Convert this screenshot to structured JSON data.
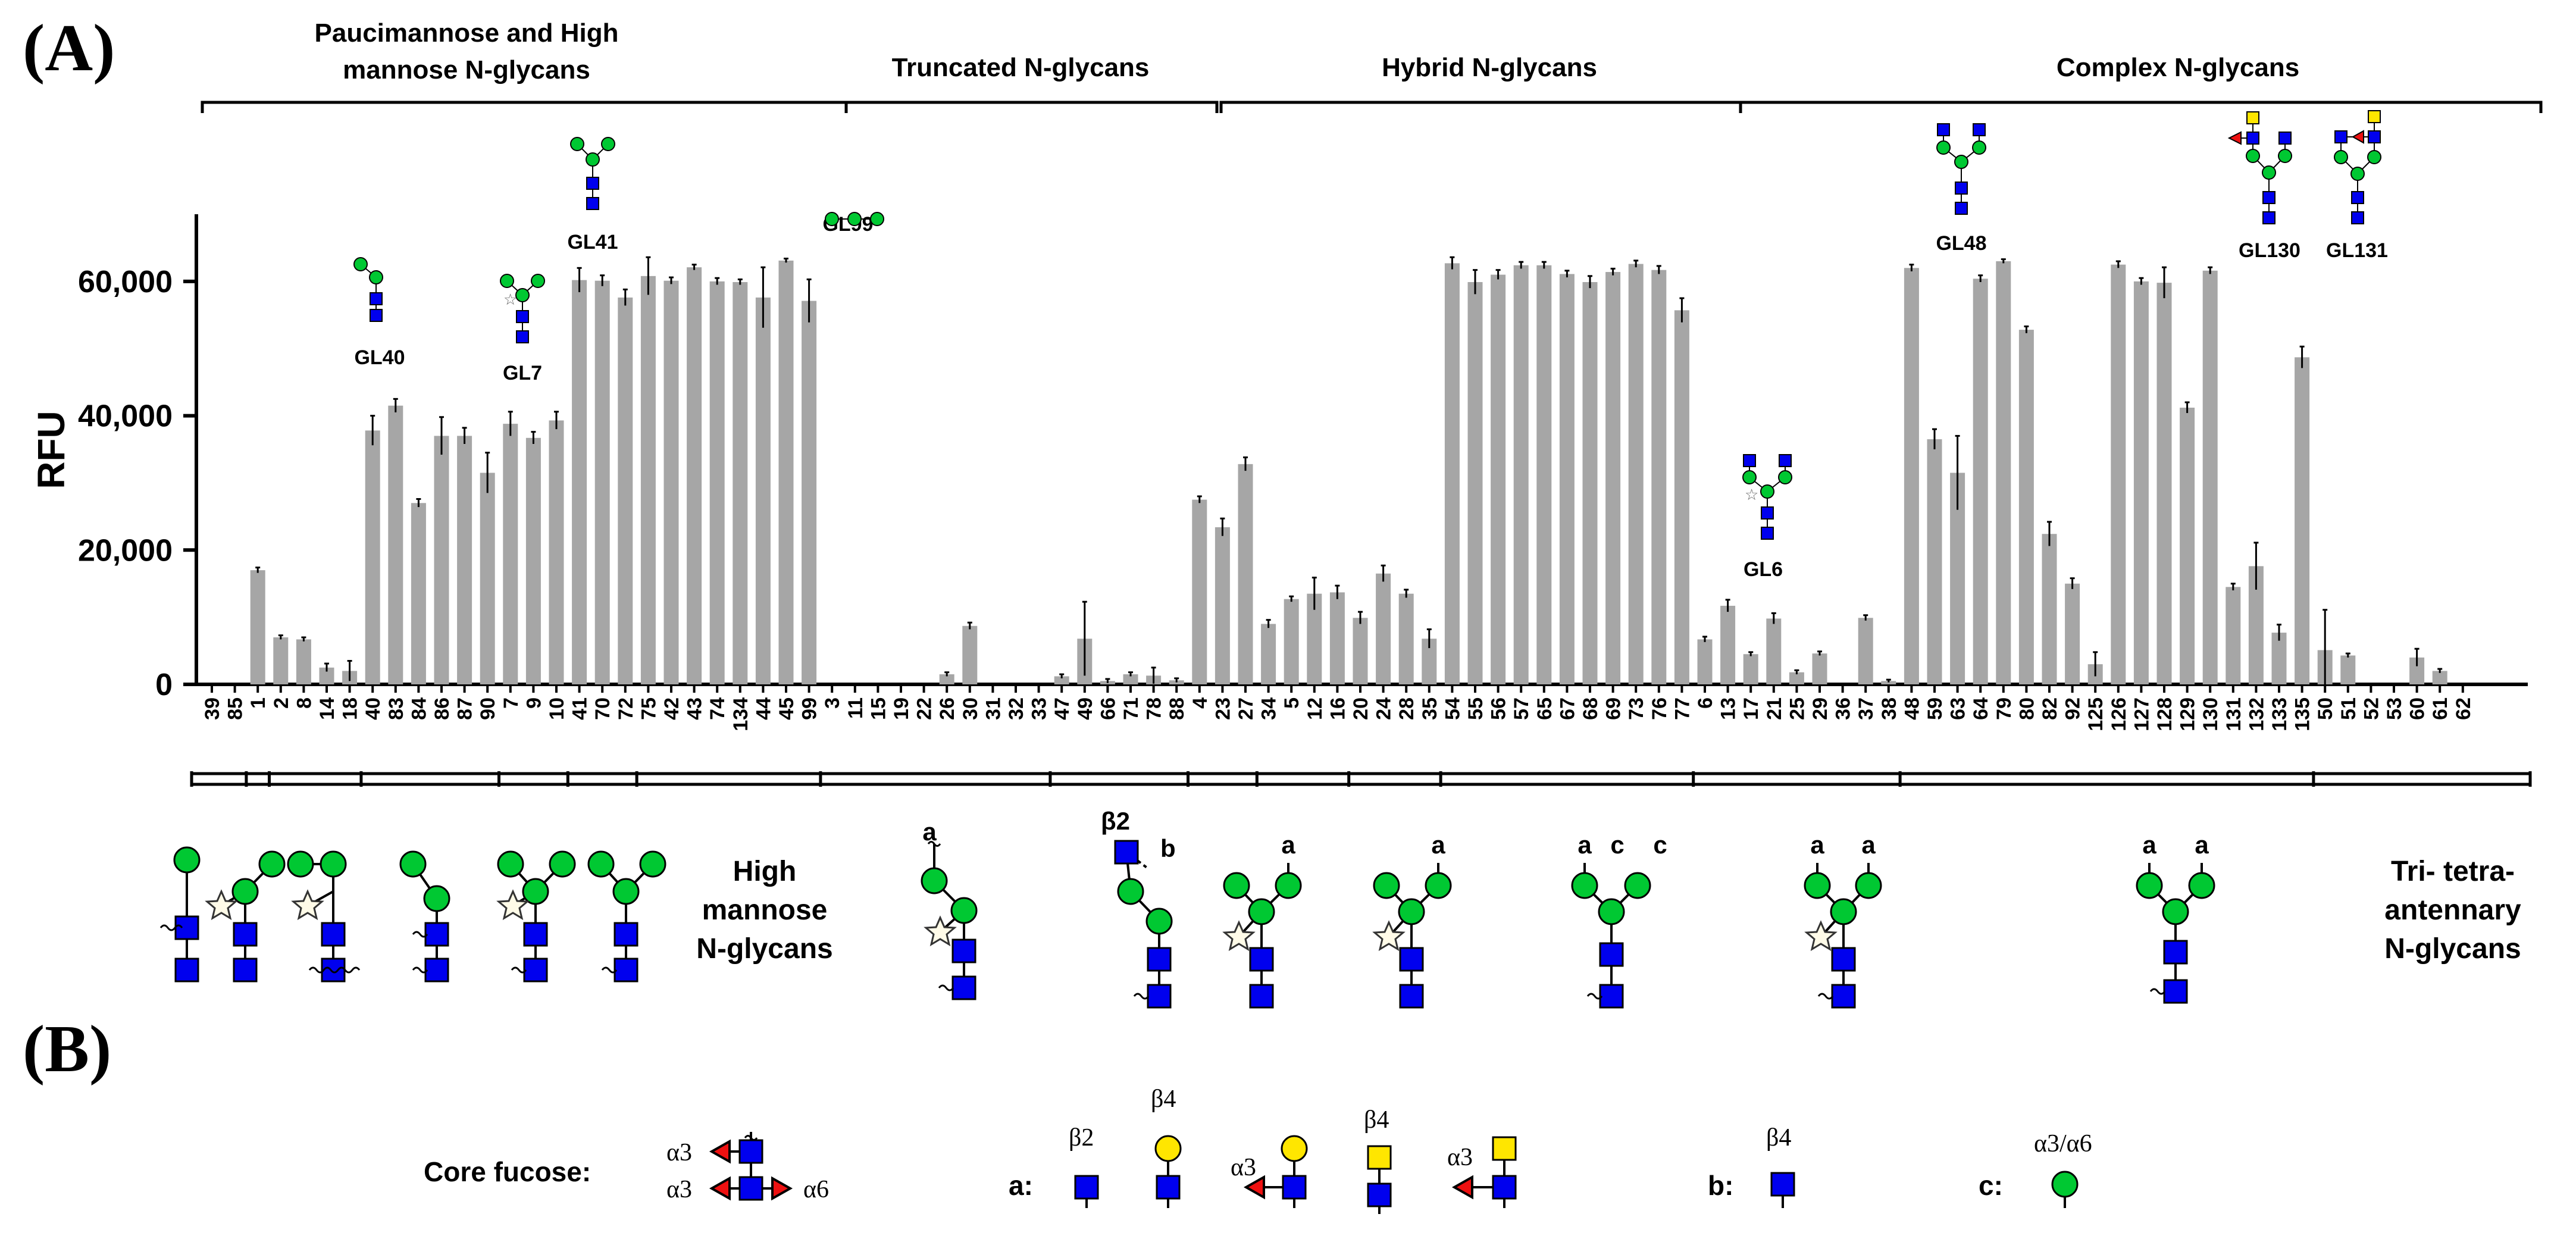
{
  "panel_a_label": "(A)",
  "panel_b_label": "(B)",
  "colors": {
    "bar": "#a6a6a6",
    "mannose": "#00c832",
    "glcnac": "#0000ee",
    "galactose": "#ffe600",
    "galnac": "#ffe600",
    "fucose": "#ee1111"
  },
  "chart_data": {
    "type": "bar",
    "ylabel": "RFU",
    "ylim": [
      0,
      70000
    ],
    "yticks": [
      0,
      20000,
      40000,
      60000
    ],
    "ytick_labels": [
      "0",
      "20,000",
      "40,000",
      "60,000"
    ],
    "categories": [
      "39",
      "85",
      "1",
      "2",
      "8",
      "14",
      "18",
      "40",
      "83",
      "84",
      "86",
      "87",
      "90",
      "7",
      "9",
      "10",
      "41",
      "70",
      "72",
      "75",
      "42",
      "43",
      "74",
      "134",
      "44",
      "45",
      "99",
      "3",
      "11",
      "15",
      "19",
      "22",
      "26",
      "30",
      "31",
      "32",
      "33",
      "47",
      "49",
      "66",
      "71",
      "78",
      "88",
      "4",
      "23",
      "27",
      "34",
      "5",
      "12",
      "16",
      "20",
      "24",
      "28",
      "35",
      "54",
      "55",
      "56",
      "57",
      "65",
      "67",
      "68",
      "69",
      "73",
      "76",
      "77",
      "6",
      "13",
      "17",
      "21",
      "25",
      "29",
      "36",
      "37",
      "38",
      "48",
      "59",
      "63",
      "64",
      "79",
      "80",
      "82",
      "92",
      "125",
      "126",
      "127",
      "128",
      "129",
      "130",
      "131",
      "132",
      "133",
      "135",
      "50",
      "51",
      "52",
      "53",
      "60",
      "61",
      "62"
    ],
    "values": [
      0,
      0,
      17000,
      7000,
      6700,
      2500,
      2000,
      37800,
      41500,
      27000,
      37000,
      37000,
      31500,
      38800,
      36700,
      39300,
      60200,
      60100,
      57600,
      60800,
      60100,
      62100,
      60000,
      59900,
      57600,
      63100,
      57100,
      0,
      0,
      0,
      0,
      0,
      1500,
      8700,
      0,
      0,
      0,
      1200,
      6800,
      500,
      1500,
      1300,
      600,
      27500,
      23400,
      32800,
      9000,
      12700,
      13500,
      13700,
      9900,
      16500,
      13500,
      6800,
      62700,
      59900,
      61000,
      62400,
      62400,
      61100,
      59900,
      61400,
      62600,
      61700,
      55700,
      6700,
      11700,
      4500,
      9800,
      1800,
      4600,
      0,
      9900,
      500,
      62000,
      36500,
      31500,
      60400,
      63000,
      52800,
      22400,
      15000,
      3000,
      62500,
      60000,
      59800,
      41200,
      61600,
      14500,
      17600,
      7700,
      48700,
      5100,
      4300,
      0,
      0,
      4000,
      2000,
      0
    ],
    "errors": [
      0,
      0,
      400,
      300,
      300,
      600,
      1500,
      2200,
      1000,
      600,
      2800,
      1200,
      3000,
      1800,
      900,
      1300,
      1800,
      800,
      1200,
      2800,
      500,
      400,
      500,
      400,
      4500,
      300,
      3200,
      0,
      0,
      0,
      0,
      0,
      300,
      500,
      0,
      0,
      0,
      300,
      5500,
      300,
      300,
      1200,
      300,
      500,
      1300,
      1000,
      600,
      400,
      2400,
      1000,
      900,
      1200,
      600,
      1400,
      900,
      1800,
      700,
      500,
      500,
      500,
      900,
      500,
      500,
      600,
      1800,
      400,
      900,
      300,
      800,
      300,
      300,
      0,
      400,
      200,
      500,
      1500,
      5500,
      500,
      300,
      500,
      1800,
      800,
      1800,
      500,
      500,
      2300,
      800,
      500,
      500,
      3500,
      1200,
      1600,
      6000,
      300,
      0,
      0,
      1300,
      300,
      0
    ],
    "group_labels": [
      {
        "id": "g1",
        "lines": [
          "Paucimannose and High",
          "mannose N-glycans"
        ]
      },
      {
        "id": "g2",
        "lines": [
          "Truncated N-glycans"
        ]
      },
      {
        "id": "g3",
        "lines": [
          "Hybrid N-glycans"
        ]
      },
      {
        "id": "g4",
        "lines": [
          "Complex N-glycans"
        ]
      }
    ],
    "annotations": [
      "GL40",
      "GL7",
      "GL41",
      "GL99",
      "GL6",
      "GL48",
      "GL130",
      "GL131"
    ]
  },
  "structure_labels": {
    "high_mannose": [
      "High",
      "mannose",
      "N-glycans"
    ],
    "tri_tetra": [
      "Tri- tetra-",
      "antennary",
      "N-glycans"
    ],
    "a": "a",
    "b": "b",
    "c": "c",
    "beta2": "β2"
  },
  "legend": {
    "core_fucose_label": "Core fucose:",
    "a_label": "a:",
    "b_label": "b:",
    "c_label": "c:",
    "alpha3": "α3",
    "alpha6": "α6",
    "beta2": "β2",
    "beta4": "β4",
    "alpha3_alpha6": "α3/α6"
  }
}
